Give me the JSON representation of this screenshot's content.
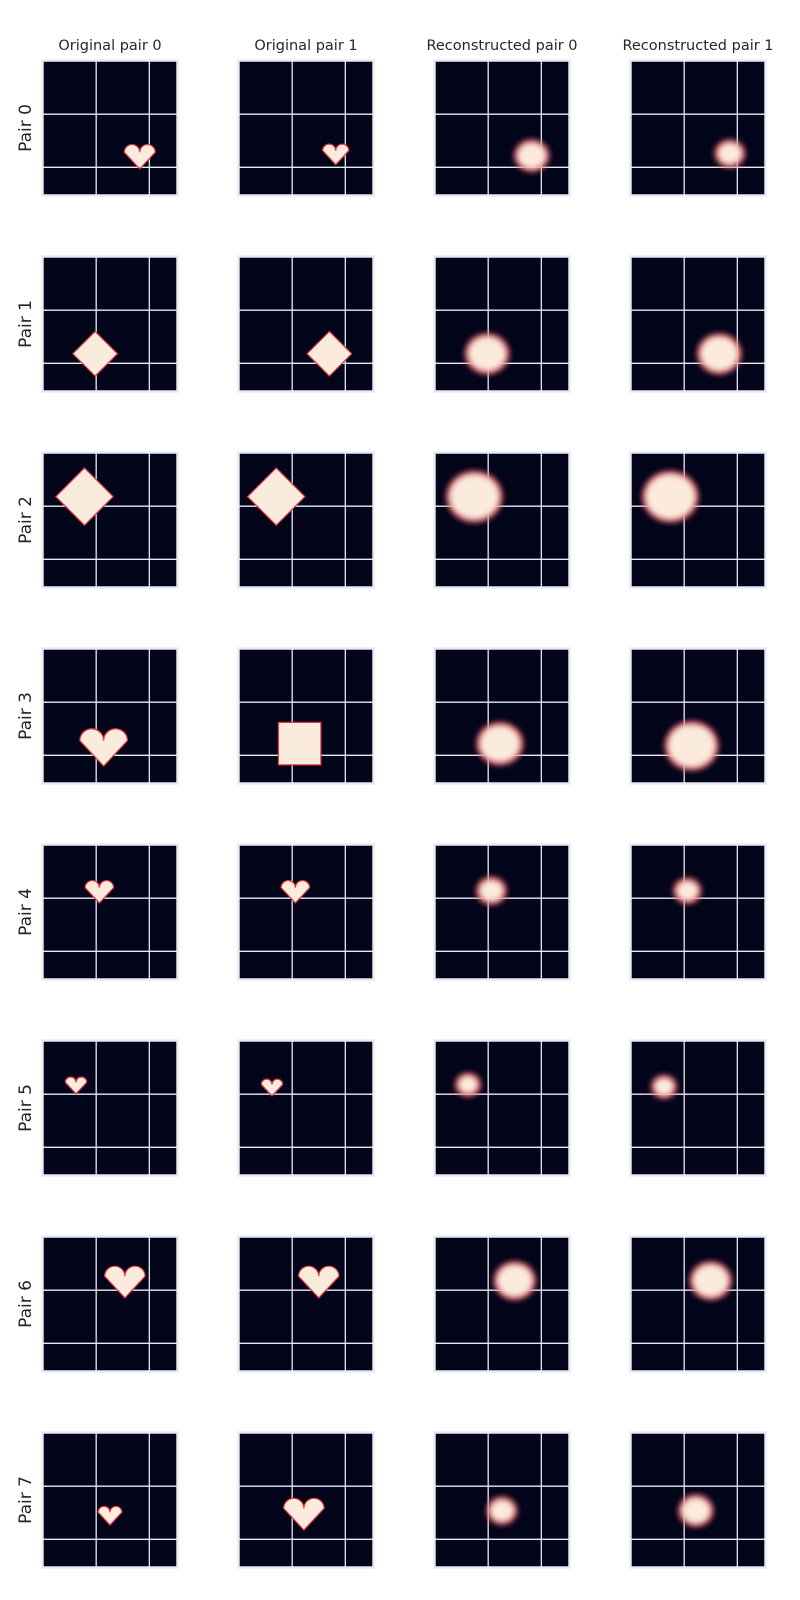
{
  "colors": {
    "background": "#ffffff",
    "panel_background": "#03051a",
    "grid": "#eaeaf2",
    "frame": "#eaeaf2",
    "shape_fill": "#faebdd",
    "shape_edge": "#e13342",
    "text": "#262626"
  },
  "chart_data": {
    "type": "heatmap",
    "layout": "grid of image panels, 8 rows x 4 columns",
    "column_titles": [
      "Original pair 0",
      "Original pair 1",
      "Reconstructed pair 0",
      "Reconstructed pair 1"
    ],
    "row_labels": [
      "Pair 0",
      "Pair 1",
      "Pair 2",
      "Pair 3",
      "Pair 4",
      "Pair 5",
      "Pair 6",
      "Pair 7"
    ],
    "image_size": [
      64,
      64
    ],
    "grid": true,
    "ticks": "none",
    "grid_lines_at": [
      0,
      25,
      50,
      63
    ],
    "panels": [
      {
        "row": 0,
        "col": 0,
        "shape": "heart",
        "cx": 46,
        "cy": 45,
        "size": 13,
        "blur": false
      },
      {
        "row": 0,
        "col": 1,
        "shape": "heart",
        "cx": 46,
        "cy": 44,
        "size": 11,
        "blur": false
      },
      {
        "row": 0,
        "col": 2,
        "shape": "blob",
        "cx": 46,
        "cy": 45,
        "size": 13,
        "blur": true
      },
      {
        "row": 0,
        "col": 3,
        "shape": "blob",
        "cx": 47,
        "cy": 44,
        "size": 11,
        "blur": true
      },
      {
        "row": 1,
        "col": 0,
        "shape": "diamond",
        "cx": 25,
        "cy": 46,
        "size": 21,
        "blur": false
      },
      {
        "row": 1,
        "col": 1,
        "shape": "diamond",
        "cx": 43,
        "cy": 46,
        "size": 21,
        "blur": false
      },
      {
        "row": 1,
        "col": 2,
        "shape": "blob",
        "cx": 25,
        "cy": 46,
        "size": 17,
        "blur": true
      },
      {
        "row": 1,
        "col": 3,
        "shape": "blob",
        "cx": 42,
        "cy": 46,
        "size": 17,
        "blur": true
      },
      {
        "row": 2,
        "col": 0,
        "shape": "diamond",
        "cx": 20,
        "cy": 21,
        "size": 27,
        "blur": false
      },
      {
        "row": 2,
        "col": 1,
        "shape": "diamond",
        "cx": 18,
        "cy": 21,
        "size": 27,
        "blur": false
      },
      {
        "row": 2,
        "col": 2,
        "shape": "blob",
        "cx": 19,
        "cy": 21,
        "size": 22,
        "blur": true
      },
      {
        "row": 2,
        "col": 3,
        "shape": "blob",
        "cx": 19,
        "cy": 21,
        "size": 22,
        "blur": true
      },
      {
        "row": 3,
        "col": 0,
        "shape": "heart",
        "cx": 29,
        "cy": 46,
        "size": 20,
        "blur": false
      },
      {
        "row": 3,
        "col": 1,
        "shape": "square",
        "cx": 29,
        "cy": 45,
        "size": 20,
        "blur": false
      },
      {
        "row": 3,
        "col": 2,
        "shape": "blob",
        "cx": 31,
        "cy": 45,
        "size": 18,
        "blur": true
      },
      {
        "row": 3,
        "col": 3,
        "shape": "blob",
        "cx": 29,
        "cy": 46,
        "size": 21,
        "blur": true
      },
      {
        "row": 4,
        "col": 0,
        "shape": "heart",
        "cx": 27,
        "cy": 22,
        "size": 12,
        "blur": false
      },
      {
        "row": 4,
        "col": 1,
        "shape": "heart",
        "cx": 27,
        "cy": 22,
        "size": 12,
        "blur": false
      },
      {
        "row": 4,
        "col": 2,
        "shape": "blob",
        "cx": 27,
        "cy": 22,
        "size": 11,
        "blur": true
      },
      {
        "row": 4,
        "col": 3,
        "shape": "blob",
        "cx": 27,
        "cy": 22,
        "size": 10,
        "blur": true
      },
      {
        "row": 5,
        "col": 0,
        "shape": "heart",
        "cx": 16,
        "cy": 21,
        "size": 9,
        "blur": false
      },
      {
        "row": 5,
        "col": 1,
        "shape": "heart",
        "cx": 16,
        "cy": 22,
        "size": 9,
        "blur": false
      },
      {
        "row": 5,
        "col": 2,
        "shape": "blob",
        "cx": 16,
        "cy": 21,
        "size": 9,
        "blur": true
      },
      {
        "row": 5,
        "col": 3,
        "shape": "blob",
        "cx": 16,
        "cy": 22,
        "size": 9,
        "blur": true
      },
      {
        "row": 6,
        "col": 0,
        "shape": "heart",
        "cx": 39,
        "cy": 21,
        "size": 17,
        "blur": false
      },
      {
        "row": 6,
        "col": 1,
        "shape": "heart",
        "cx": 38,
        "cy": 21,
        "size": 17,
        "blur": false
      },
      {
        "row": 6,
        "col": 2,
        "shape": "blob",
        "cx": 38,
        "cy": 21,
        "size": 16,
        "blur": true
      },
      {
        "row": 6,
        "col": 3,
        "shape": "blob",
        "cx": 38,
        "cy": 21,
        "size": 16,
        "blur": true
      },
      {
        "row": 7,
        "col": 0,
        "shape": "heart",
        "cx": 32,
        "cy": 39,
        "size": 10,
        "blur": false
      },
      {
        "row": 7,
        "col": 1,
        "shape": "heart",
        "cx": 31,
        "cy": 38,
        "size": 17,
        "blur": false
      },
      {
        "row": 7,
        "col": 2,
        "shape": "blob",
        "cx": 32,
        "cy": 37,
        "size": 11,
        "blur": true
      },
      {
        "row": 7,
        "col": 3,
        "shape": "blob",
        "cx": 31,
        "cy": 37,
        "size": 13,
        "blur": true
      }
    ]
  }
}
